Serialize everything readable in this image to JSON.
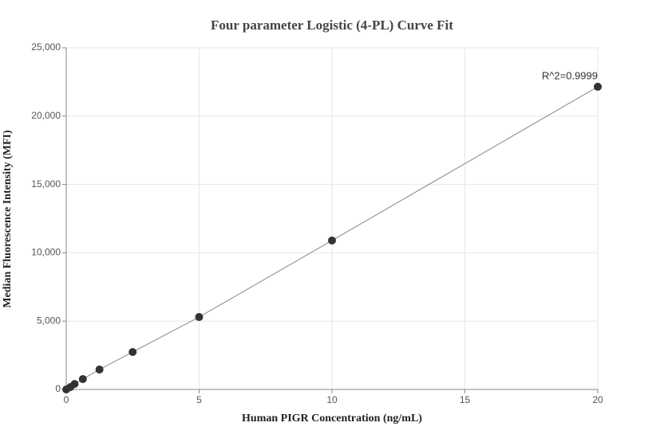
{
  "chart_data": {
    "type": "scatter",
    "title": "Four parameter Logistic (4-PL) Curve Fit",
    "x_label": "Human PIGR Concentration (ng/mL)",
    "y_label": "Median Fluorescence Intensity (MFI)",
    "annotation": "R^2=0.9999",
    "series": [
      {
        "color": "#333333",
        "x": [
          0,
          0.156,
          0.3125,
          0.625,
          1.25,
          2.5,
          5,
          10,
          20
        ],
        "values": [
          0,
          175,
          400,
          760,
          1460,
          2740,
          5300,
          10900,
          22150
        ]
      }
    ],
    "line_color": "#888888",
    "xlim": [
      0,
      20
    ],
    "xticks": [
      0,
      5,
      10,
      15,
      20
    ],
    "ylim": [
      0,
      25000
    ],
    "yticks": [
      {
        "value": 0,
        "label": "0"
      },
      {
        "value": 5000,
        "label": "5,000"
      },
      {
        "value": 10000,
        "label": "10,000"
      },
      {
        "value": 15000,
        "label": "15,000"
      },
      {
        "value": 20000,
        "label": "20,000"
      },
      {
        "value": 25000,
        "label": "25,000"
      }
    ],
    "grid": true
  }
}
